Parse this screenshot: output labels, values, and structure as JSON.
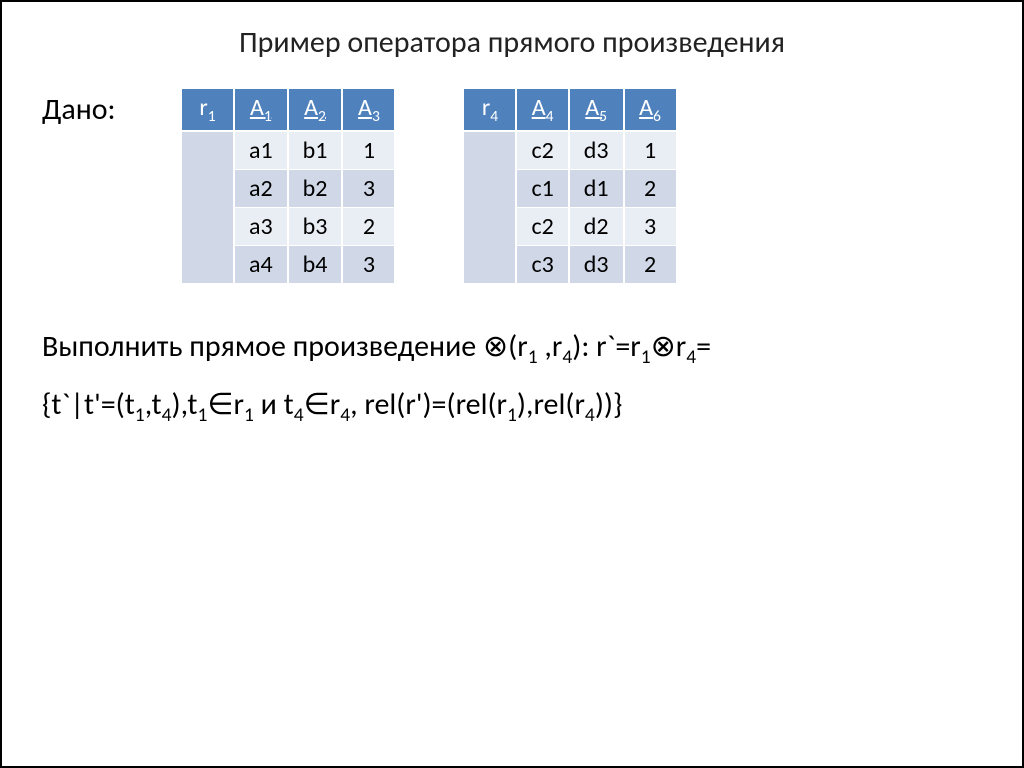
{
  "title": "Пример оператора прямого произведения",
  "givenLabel": "Дано:",
  "tables": {
    "left": {
      "relName": "r",
      "relSub": "1",
      "headers": [
        {
          "label": "A",
          "sub": "1"
        },
        {
          "label": "A",
          "sub": "2"
        },
        {
          "label": "A",
          "sub": "3"
        }
      ],
      "rows": [
        [
          "a1",
          "b1",
          "1"
        ],
        [
          "a2",
          "b2",
          "3"
        ],
        [
          "a3",
          "b3",
          "2"
        ],
        [
          "a4",
          "b4",
          "3"
        ]
      ],
      "header_bg": "#4f81bd",
      "header_fg": "#ffffff",
      "row_odd_bg": "#e9edf4",
      "row_even_bg": "#d0d8e8",
      "name_cell_bg": "#d0d8e8",
      "fontsize": 24
    },
    "right": {
      "relName": "r",
      "relSub": "4",
      "headers": [
        {
          "label": "A",
          "sub": "4"
        },
        {
          "label": "A",
          "sub": "5"
        },
        {
          "label": "A",
          "sub": "6"
        }
      ],
      "rows": [
        [
          "c2",
          "d3",
          "1"
        ],
        [
          "c1",
          "d1",
          "2"
        ],
        [
          "c2",
          "d2",
          "3"
        ],
        [
          "c3",
          "d3",
          "2"
        ]
      ],
      "header_bg": "#4f81bd",
      "header_fg": "#ffffff",
      "row_odd_bg": "#e9edf4",
      "row_even_bg": "#d0d8e8",
      "name_cell_bg": "#d0d8e8",
      "fontsize": 24
    }
  },
  "task": {
    "line1_prefix": "Выполнить прямое произведение ",
    "otimes": "⊗",
    "line1_r1": "r",
    "line1_r1sub": "1",
    "line1_sep": " ,",
    "line1_r4": "r",
    "line1_r4sub": "4",
    "line1_after_paren": "): r`=r",
    "line1_eq_r1sub": "1",
    "line1_eq_r4": "r",
    "line1_eq_r4sub": "4",
    "line1_eq_end": "=",
    "line2": "{t`|t'=(t",
    "line2_t1sub": "1",
    "line2_a": ",t",
    "line2_t4sub": "4",
    "line2_b": "),t",
    "line2_c_sub": "1",
    "line2_in": "∈",
    "line2_r1": "r",
    "line2_r1sub": "1",
    "line2_and": " и t",
    "line2_t4sub2": "4",
    "line2_r4": "r",
    "line2_r4sub": "4",
    "line2_rel": ", rel(r')=(rel(r",
    "line2_rel_r1sub": "1",
    "line2_rel_mid": "),rel(r",
    "line2_rel_r4sub": "4",
    "line2_end": "))}"
  },
  "style": {
    "title_fontsize": 30,
    "body_fontsize": 30,
    "title_color": "#222222",
    "text_color": "#000000",
    "border_color": "#000000",
    "background": "#ffffff"
  }
}
